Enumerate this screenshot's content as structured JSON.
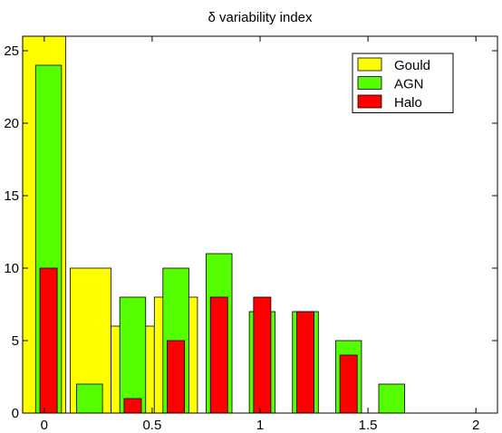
{
  "chart_data": {
    "type": "bar",
    "title": "δ variability index",
    "xlabel": "",
    "ylabel": "",
    "xlim": [
      -0.1,
      2.1
    ],
    "ylim": [
      0,
      26
    ],
    "xticks": [
      {
        "value": 0,
        "label": "0"
      },
      {
        "value": 0.5,
        "label": "0.5"
      },
      {
        "value": 1,
        "label": "1"
      },
      {
        "value": 1.5,
        "label": "1.5"
      },
      {
        "value": 2,
        "label": "2"
      }
    ],
    "yticks": [
      {
        "value": 0,
        "label": "0"
      },
      {
        "value": 5,
        "label": "5"
      },
      {
        "value": 10,
        "label": "10"
      },
      {
        "value": 15,
        "label": "15"
      },
      {
        "value": 20,
        "label": "20"
      },
      {
        "value": 25,
        "label": "25"
      }
    ],
    "grid": false,
    "legend_position": "top-right",
    "series": [
      {
        "name": "Gould",
        "color": "#ffff00",
        "bars": [
          {
            "x0": -0.1,
            "x1": 0.1,
            "value": 26
          },
          {
            "x0": 0.12,
            "x1": 0.31,
            "value": 10
          },
          {
            "x0": 0.31,
            "x1": 0.51,
            "value": 6
          },
          {
            "x0": 0.51,
            "x1": 0.71,
            "value": 8
          }
        ]
      },
      {
        "name": "AGN",
        "color": "#55ff00",
        "bars": [
          {
            "x0": -0.04,
            "x1": 0.08,
            "value": 24
          },
          {
            "x0": 0.15,
            "x1": 0.27,
            "value": 2
          },
          {
            "x0": 0.35,
            "x1": 0.47,
            "value": 8
          },
          {
            "x0": 0.55,
            "x1": 0.67,
            "value": 10
          },
          {
            "x0": 0.75,
            "x1": 0.87,
            "value": 11
          },
          {
            "x0": 0.95,
            "x1": 1.07,
            "value": 7
          },
          {
            "x0": 1.15,
            "x1": 1.27,
            "value": 7
          },
          {
            "x0": 1.35,
            "x1": 1.47,
            "value": 5
          },
          {
            "x0": 1.55,
            "x1": 1.67,
            "value": 2
          }
        ]
      },
      {
        "name": "Halo",
        "color": "#ff0000",
        "bars": [
          {
            "x0": -0.02,
            "x1": 0.06,
            "value": 10
          },
          {
            "x0": 0.37,
            "x1": 0.45,
            "value": 1
          },
          {
            "x0": 0.57,
            "x1": 0.65,
            "value": 5
          },
          {
            "x0": 0.77,
            "x1": 0.85,
            "value": 8
          },
          {
            "x0": 0.97,
            "x1": 1.05,
            "value": 8
          },
          {
            "x0": 1.17,
            "x1": 1.25,
            "value": 7
          },
          {
            "x0": 1.37,
            "x1": 1.45,
            "value": 4
          }
        ]
      }
    ]
  }
}
